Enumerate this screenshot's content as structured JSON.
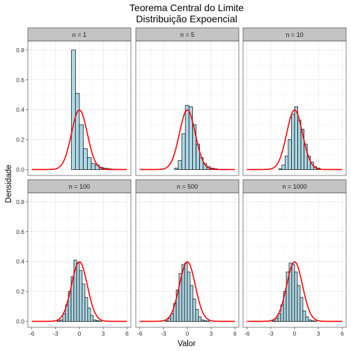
{
  "chart_data": {
    "type": "bar",
    "title": "Teorema Central do Limite",
    "subtitle": "Distribuição Expoencial",
    "xlabel": "Valor",
    "ylabel": "Densidade",
    "xlim": [
      -6.5,
      6.5
    ],
    "ylim": [
      -0.04,
      0.86
    ],
    "x_ticks": [
      -6,
      -3,
      0,
      3,
      6
    ],
    "y_ticks": [
      0.0,
      0.2,
      0.4,
      0.6,
      0.8
    ],
    "x_tick_labels": [
      "-6",
      "-3",
      "0",
      "3",
      "6"
    ],
    "y_tick_labels": [
      "0.0",
      "0.2",
      "0.4",
      "0.6",
      "0.8"
    ],
    "grid": true,
    "bar_color": "#ADD8E6",
    "curve_color": "#FF0000",
    "curve": "standard normal density",
    "panels": [
      {
        "label": "n = 1",
        "bin_width": 0.5,
        "bin_start": -1.0,
        "densities": [
          0.8,
          0.51,
          0.3,
          0.14,
          0.08,
          0.04,
          0.03,
          0.015,
          0.01,
          0.005,
          0.003,
          0.002
        ]
      },
      {
        "label": "n = 5",
        "bin_width": 0.45,
        "bin_start": -1.6,
        "densities": [
          0.01,
          0.06,
          0.24,
          0.43,
          0.42,
          0.3,
          0.17,
          0.08,
          0.04,
          0.02,
          0.01,
          0.005
        ]
      },
      {
        "label": "n = 10",
        "bin_width": 0.4,
        "bin_start": -2.0,
        "densities": [
          0.005,
          0.03,
          0.09,
          0.2,
          0.37,
          0.42,
          0.33,
          0.27,
          0.17,
          0.09,
          0.05,
          0.02,
          0.01
        ]
      },
      {
        "label": "n = 100",
        "bin_width": 0.35,
        "bin_start": -2.8,
        "densities": [
          0.003,
          0.01,
          0.05,
          0.11,
          0.2,
          0.3,
          0.41,
          0.39,
          0.34,
          0.25,
          0.16,
          0.09,
          0.04,
          0.01,
          0.005,
          0.002
        ]
      },
      {
        "label": "n = 500",
        "bin_width": 0.35,
        "bin_start": -2.8,
        "densities": [
          0.003,
          0.02,
          0.05,
          0.12,
          0.21,
          0.32,
          0.38,
          0.39,
          0.33,
          0.24,
          0.15,
          0.08,
          0.03,
          0.01,
          0.004,
          0.002
        ]
      },
      {
        "label": "n = 1000",
        "bin_width": 0.35,
        "bin_start": -2.8,
        "densities": [
          0.003,
          0.02,
          0.05,
          0.11,
          0.2,
          0.33,
          0.39,
          0.38,
          0.33,
          0.24,
          0.16,
          0.07,
          0.03,
          0.01,
          0.004,
          0.002
        ]
      }
    ]
  }
}
